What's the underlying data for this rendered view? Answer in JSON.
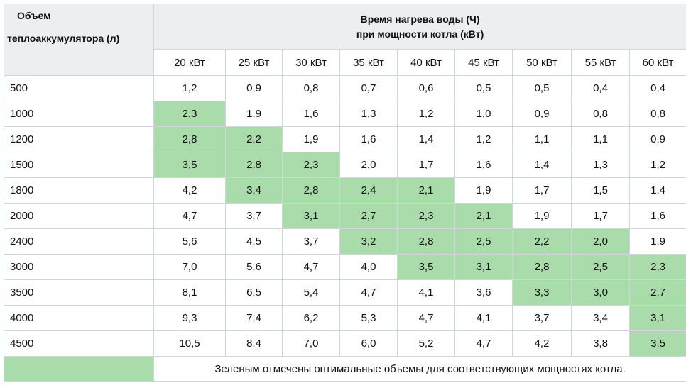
{
  "header": {
    "volume_line1": "Объем",
    "volume_line2": "теплоаккумулятора (л)",
    "group_line1": "Время нагрева воды (Ч)",
    "group_line2": "при мощности котла (кВт)"
  },
  "powers": [
    "20 кВт",
    "25 кВт",
    "30 кВт",
    "35 кВт",
    "40 кВт",
    "45 кВт",
    "50 кВт",
    "55 кВт",
    "60 кВт"
  ],
  "rows": [
    {
      "volume": "500",
      "values": [
        "1,2",
        "0,9",
        "0,8",
        "0,7",
        "0,6",
        "0,5",
        "0,5",
        "0,4",
        "0,4"
      ],
      "optimal": [
        0,
        0,
        0,
        0,
        0,
        0,
        0,
        0,
        0
      ]
    },
    {
      "volume": "1000",
      "values": [
        "2,3",
        "1,9",
        "1,6",
        "1,3",
        "1,2",
        "1,0",
        "0,9",
        "0,8",
        "0,8"
      ],
      "optimal": [
        1,
        0,
        0,
        0,
        0,
        0,
        0,
        0,
        0
      ]
    },
    {
      "volume": "1200",
      "values": [
        "2,8",
        "2,2",
        "1,9",
        "1,6",
        "1,4",
        "1,2",
        "1,1",
        "1,1",
        "0,9"
      ],
      "optimal": [
        1,
        1,
        0,
        0,
        0,
        0,
        0,
        0,
        0
      ]
    },
    {
      "volume": "1500",
      "values": [
        "3,5",
        "2,8",
        "2,3",
        "2,0",
        "1,7",
        "1,6",
        "1,4",
        "1,3",
        "1,2"
      ],
      "optimal": [
        1,
        1,
        1,
        0,
        0,
        0,
        0,
        0,
        0
      ]
    },
    {
      "volume": "1800",
      "values": [
        "4,2",
        "3,4",
        "2,8",
        "2,4",
        "2,1",
        "1,9",
        "1,7",
        "1,5",
        "1,4"
      ],
      "optimal": [
        0,
        1,
        1,
        1,
        1,
        0,
        0,
        0,
        0
      ]
    },
    {
      "volume": "2000",
      "values": [
        "4,7",
        "3,7",
        "3,1",
        "2,7",
        "2,3",
        "2,1",
        "1,9",
        "1,7",
        "1,6"
      ],
      "optimal": [
        0,
        0,
        1,
        1,
        1,
        1,
        0,
        0,
        0
      ]
    },
    {
      "volume": "2400",
      "values": [
        "5,6",
        "4,5",
        "3,7",
        "3,2",
        "2,8",
        "2,5",
        "2,2",
        "2,0",
        "1,9"
      ],
      "optimal": [
        0,
        0,
        0,
        1,
        1,
        1,
        1,
        1,
        0
      ]
    },
    {
      "volume": "3000",
      "values": [
        "7,0",
        "5,6",
        "4,7",
        "4,0",
        "3,5",
        "3,1",
        "2,8",
        "2,5",
        "2,3"
      ],
      "optimal": [
        0,
        0,
        0,
        0,
        1,
        1,
        1,
        1,
        1
      ]
    },
    {
      "volume": "3500",
      "values": [
        "8,1",
        "6,5",
        "5,4",
        "4,7",
        "4,1",
        "3,6",
        "3,3",
        "3,0",
        "2,7"
      ],
      "optimal": [
        0,
        0,
        0,
        0,
        0,
        0,
        1,
        1,
        1
      ]
    },
    {
      "volume": "4000",
      "values": [
        "9,3",
        "7,4",
        "6,2",
        "5,3",
        "4,7",
        "4,1",
        "3,7",
        "3,4",
        "3,1"
      ],
      "optimal": [
        0,
        0,
        0,
        0,
        0,
        0,
        0,
        0,
        1
      ]
    },
    {
      "volume": "4500",
      "values": [
        "10,5",
        "8,4",
        "7,0",
        "6,0",
        "5,2",
        "4,7",
        "4,2",
        "3,8",
        "3,5"
      ],
      "optimal": [
        0,
        0,
        0,
        0,
        0,
        0,
        0,
        0,
        1
      ]
    }
  ],
  "legend": {
    "text": "Зеленым отмечены оптимальные объемы для соответствующих мощностях котла.",
    "color": "#a9dcaa"
  }
}
